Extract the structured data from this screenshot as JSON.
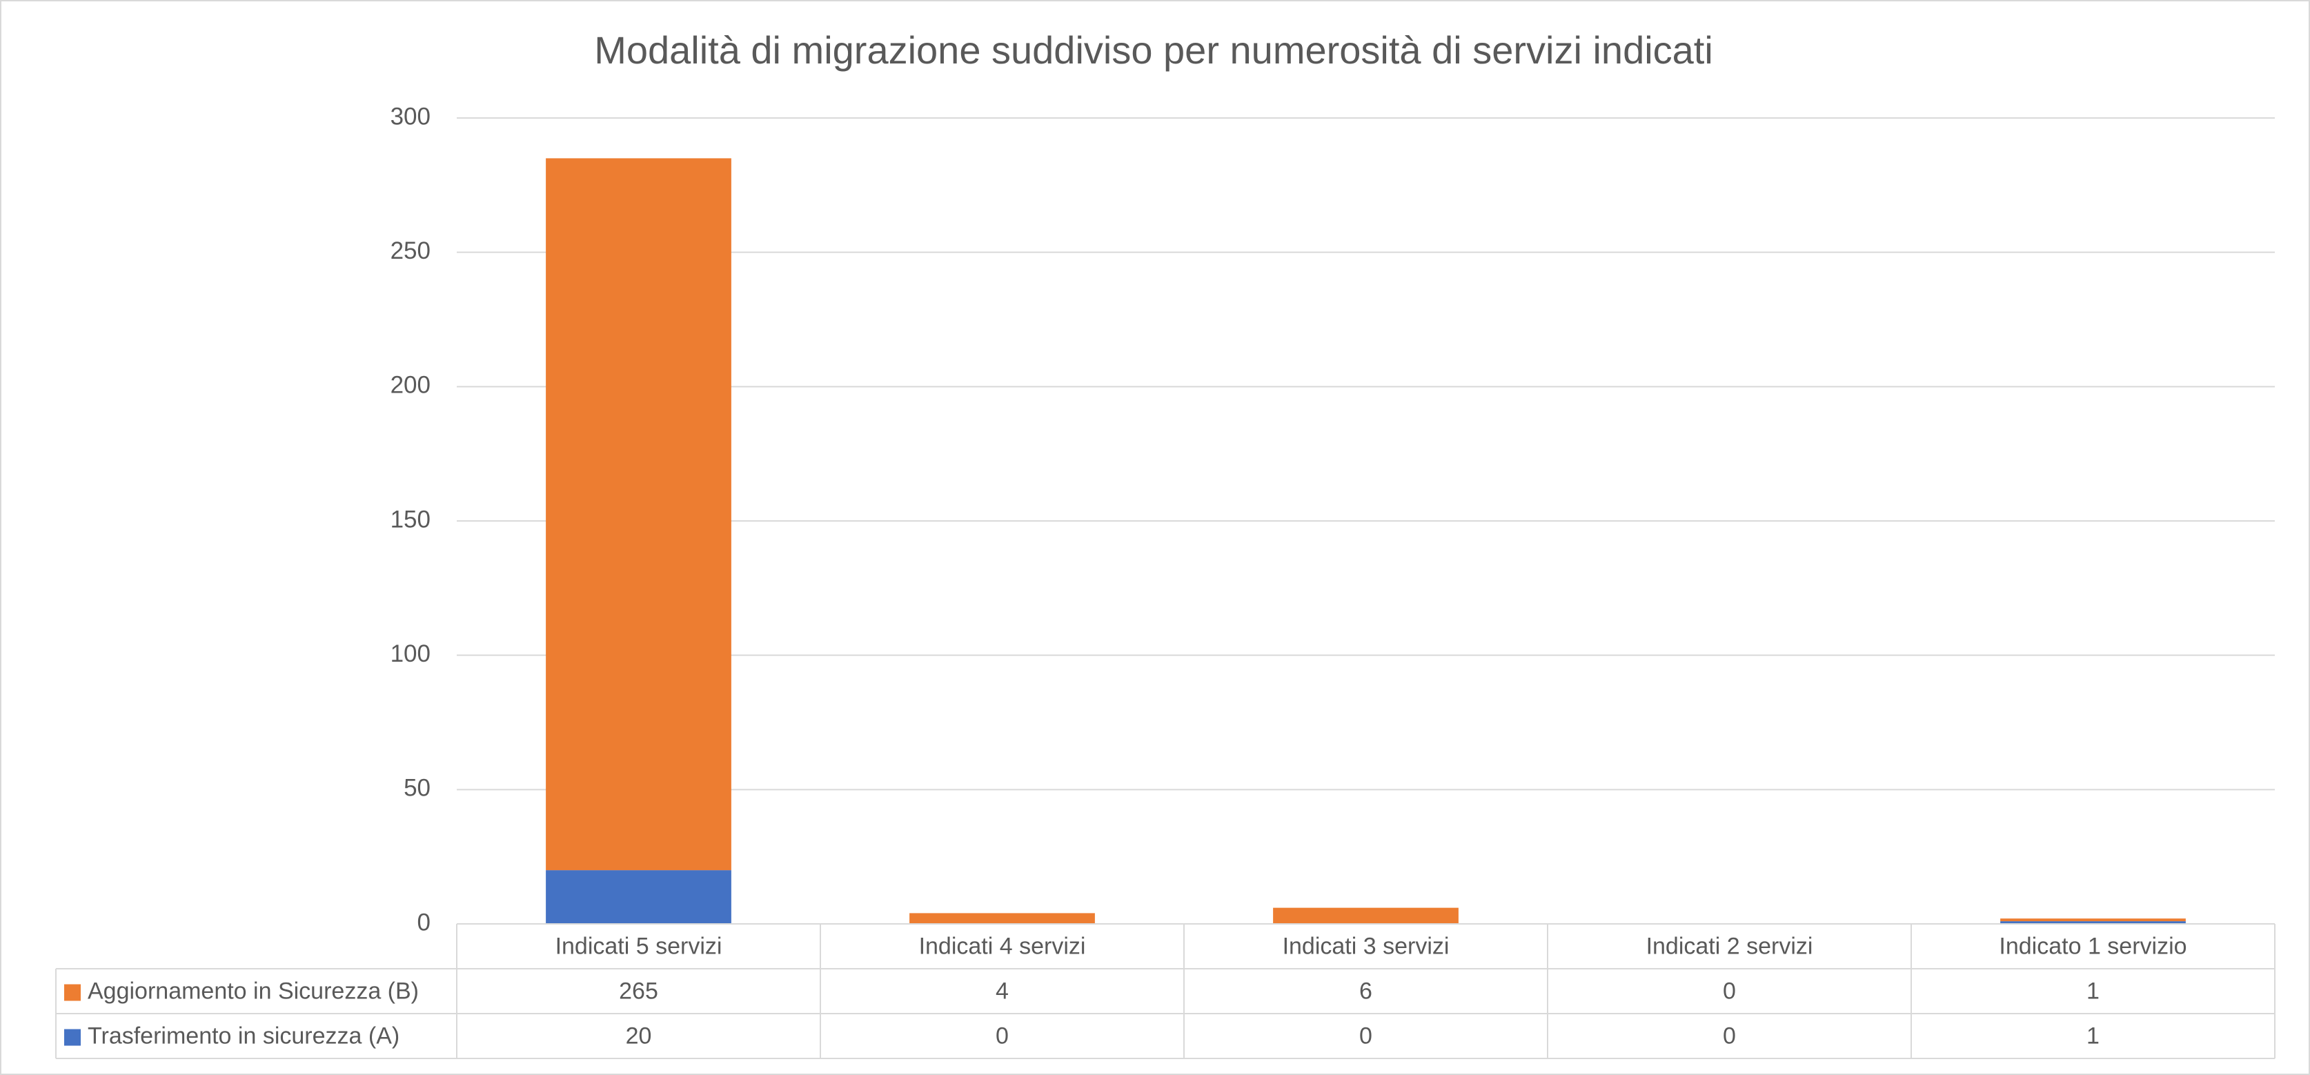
{
  "chart_data": {
    "type": "stacked_bar",
    "title": "Modalità di migrazione suddiviso per numerosità di servizi indicati",
    "categories": [
      "Indicati 5 servizi",
      "Indicati 4 servizi",
      "Indicati 3 servizi",
      "Indicati 2 servizi",
      "Indicato 1 servizio"
    ],
    "series": [
      {
        "name": "Aggiornamento in Sicurezza (B)",
        "color": "#ed7d31",
        "values": [
          265,
          4,
          6,
          0,
          1
        ]
      },
      {
        "name": "Trasferimento in sicurezza (A)",
        "color": "#4472c4",
        "values": [
          20,
          0,
          0,
          0,
          1
        ]
      }
    ],
    "ylim": [
      0,
      300
    ],
    "yticks": [
      0,
      50,
      100,
      150,
      200,
      250,
      300
    ],
    "grid": true,
    "legend": "data-table"
  }
}
